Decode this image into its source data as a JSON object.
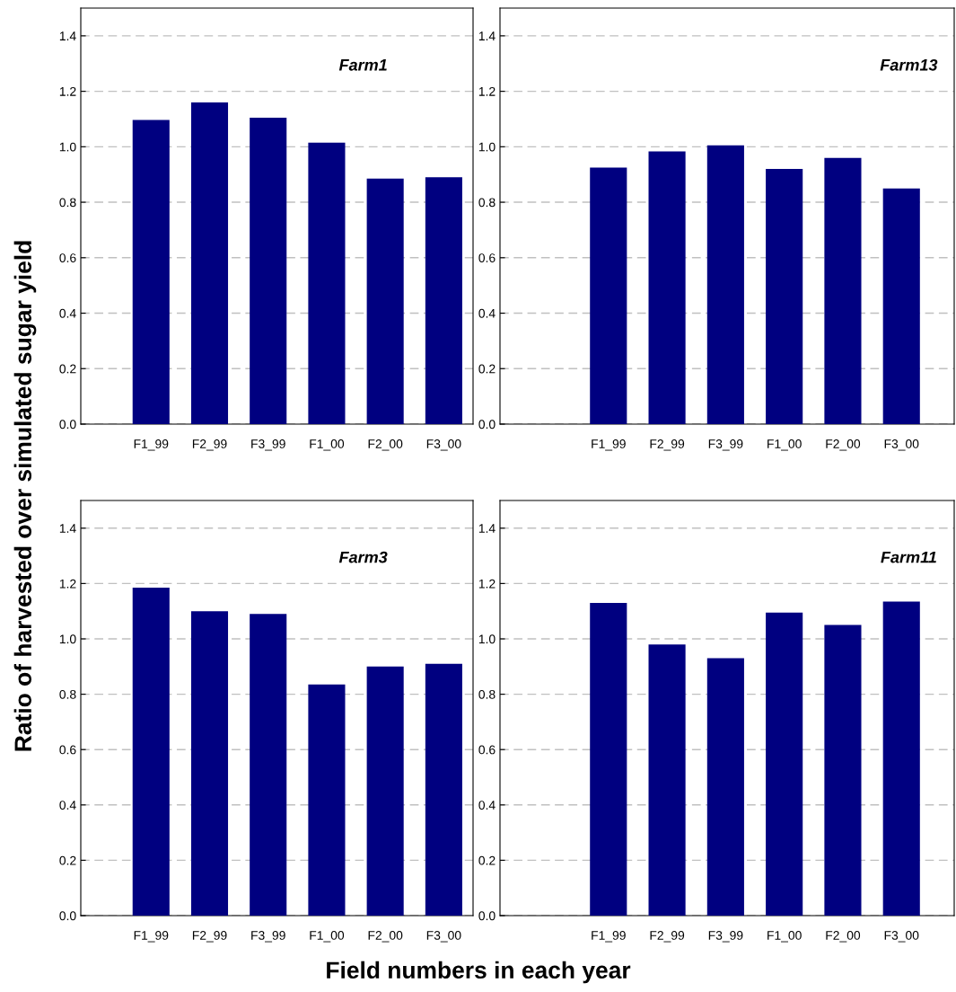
{
  "chart_data": [
    {
      "type": "bar",
      "ylabel": "Ratio of harvested over simulated sugar yield",
      "annotations": [
        "Farm1"
      ],
      "categories": [
        "F1_99",
        "F2_99",
        "F3_99",
        "F1_00",
        "F2_00",
        "F3_00"
      ],
      "values": [
        1.097,
        1.16,
        1.105,
        1.015,
        0.885,
        0.89
      ],
      "color": "#000080",
      "ylim": [
        0,
        1.5
      ],
      "yticks": [
        {
          "value": 0,
          "label": "0.0"
        },
        {
          "value": 0.2,
          "label": "0.2"
        },
        {
          "value": 0.4,
          "label": "0.4"
        },
        {
          "value": 0.6,
          "label": "0.6"
        },
        {
          "value": 0.8,
          "label": "0.8"
        },
        {
          "value": 1.0,
          "label": "1.0"
        },
        {
          "value": 1.2,
          "label": "1.2"
        },
        {
          "value": 1.4,
          "label": "1.4"
        }
      ],
      "grid": "y"
    },
    {
      "type": "bar",
      "annotations": [
        "Farm13"
      ],
      "categories": [
        "F1_99",
        "F2_99",
        "F3_99",
        "F1_00",
        "F2_00",
        "F3_00"
      ],
      "values": [
        0.925,
        0.983,
        1.005,
        0.92,
        0.96,
        0.85
      ],
      "color": "#000080",
      "ylim": [
        0,
        1.5
      ],
      "yticks": [
        {
          "value": 0,
          "label": "0.0"
        },
        {
          "value": 0.2,
          "label": "0.2"
        },
        {
          "value": 0.4,
          "label": "0.4"
        },
        {
          "value": 0.6,
          "label": "0.6"
        },
        {
          "value": 0.8,
          "label": "0.8"
        },
        {
          "value": 1.0,
          "label": "1.0"
        },
        {
          "value": 1.2,
          "label": "1.2"
        },
        {
          "value": 1.4,
          "label": "1.4"
        }
      ],
      "grid": "y"
    },
    {
      "type": "bar",
      "xlabel": "Field numbers in each year",
      "annotations": [
        "Farm3"
      ],
      "categories": [
        "F1_99",
        "F2_99",
        "F3_99",
        "F1_00",
        "F2_00",
        "F3_00"
      ],
      "values": [
        1.185,
        1.1,
        1.09,
        0.835,
        0.9,
        0.91
      ],
      "color": "#000080",
      "ylim": [
        0,
        1.5
      ],
      "yticks": [
        {
          "value": 0,
          "label": "0.0"
        },
        {
          "value": 0.2,
          "label": "0.2"
        },
        {
          "value": 0.4,
          "label": "0.4"
        },
        {
          "value": 0.6,
          "label": "0.6"
        },
        {
          "value": 0.8,
          "label": "0.8"
        },
        {
          "value": 1.0,
          "label": "1.0"
        },
        {
          "value": 1.2,
          "label": "1.2"
        },
        {
          "value": 1.4,
          "label": "1.4"
        }
      ],
      "grid": "y"
    },
    {
      "type": "bar",
      "annotations": [
        "Farm11"
      ],
      "categories": [
        "F1_99",
        "F2_99",
        "F3_99",
        "F1_00",
        "F2_00",
        "F3_00"
      ],
      "values": [
        1.13,
        0.98,
        0.93,
        1.095,
        1.05,
        1.135
      ],
      "color": "#000080",
      "ylim": [
        0,
        1.5
      ],
      "yticks": [
        {
          "value": 0,
          "label": "0.0"
        },
        {
          "value": 0.2,
          "label": "0.2"
        },
        {
          "value": 0.4,
          "label": "0.4"
        },
        {
          "value": 0.6,
          "label": "0.6"
        },
        {
          "value": 0.8,
          "label": "0.8"
        },
        {
          "value": 1.0,
          "label": "1.0"
        },
        {
          "value": 1.2,
          "label": "1.2"
        },
        {
          "value": 1.4,
          "label": "1.4"
        }
      ],
      "grid": "y"
    }
  ]
}
